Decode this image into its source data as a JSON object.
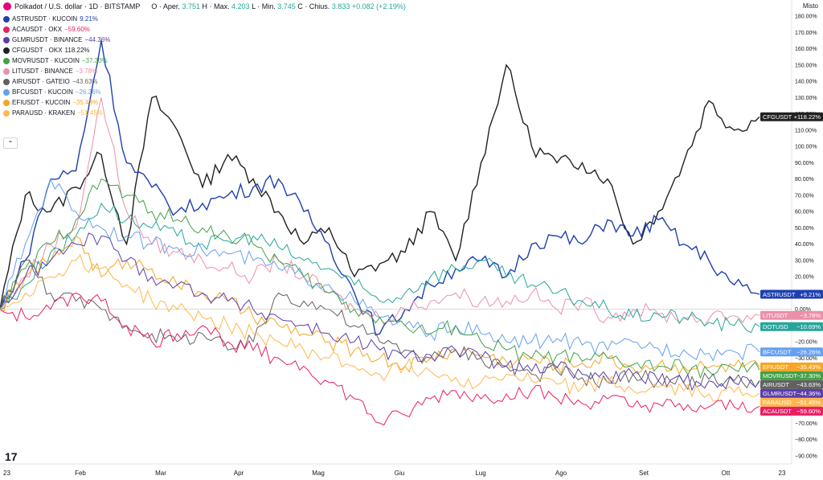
{
  "header": {
    "title": "Polkadot / U.S. dollar · 1D · BITSTAMP",
    "ohlc": {
      "open_label": "O · Aper.",
      "open": "3.751",
      "high_label": "H · Max.",
      "high": "4.203",
      "low_label": "L · Min.",
      "low": "3.745",
      "close_label": "C · Chius.",
      "close": "3.833",
      "change": "+0.082 (+2.19%)"
    }
  },
  "scale_mode": "Misto",
  "legend": [
    {
      "label": "ASTRUSDT · KUCOIN",
      "value": "9.21%",
      "color": "#1e40af"
    },
    {
      "label": "ACAUSDT · OKX",
      "value": "−59.60%",
      "color": "#e91e63"
    },
    {
      "label": "GLMRUSDT · BINANCE",
      "value": "−44.36%",
      "color": "#5b3ea8"
    },
    {
      "label": "CFGUSDT · OKX",
      "value": "118.22%",
      "color": "#212121"
    },
    {
      "label": "MOVRUSDT · KUCOIN",
      "value": "−37.30%",
      "color": "#43a047"
    },
    {
      "label": "LITUSDT · BINANCE",
      "value": "−3.78%",
      "color": "#ec8fa8"
    },
    {
      "label": "AIRUSDT · GATEIO",
      "value": "−43.63%",
      "color": "#616161"
    },
    {
      "label": "BFCUSDT · KUCOIN",
      "value": "−26.26%",
      "color": "#64a0f0"
    },
    {
      "label": "EFIUSDT · KUCOIN",
      "value": "−35.43%",
      "color": "#f5a623"
    },
    {
      "label": "PARAUSD · KRAKEN",
      "value": "−51.45%",
      "color": "#ffb74d"
    }
  ],
  "collapse_glyph": "⌃",
  "logo_text": "17",
  "chart_data": {
    "type": "line",
    "title": "Polkadot / U.S. dollar · 1D · BITSTAMP",
    "xlabel": "",
    "ylabel": "",
    "x_ticks": [
      "23",
      "Feb",
      "Mar",
      "Apr",
      "Mag",
      "Giu",
      "Lug",
      "Ago",
      "Set",
      "Ott",
      "23"
    ],
    "y_ticks": [
      "180.00%",
      "170.00%",
      "160.00%",
      "150.00%",
      "140.00%",
      "130.00%",
      "120.00%",
      "110.00%",
      "100.00%",
      "90.00%",
      "80.00%",
      "70.00%",
      "60.00%",
      "50.00%",
      "40.00%",
      "30.00%",
      "20.00%",
      "10.00%",
      "0.00%",
      "−10.00%",
      "−20.00%",
      "−30.00%",
      "−40.00%",
      "−50.00%",
      "−60.00%",
      "−70.00%",
      "−80.00%",
      "−90.00%"
    ],
    "y_values": [
      180,
      170,
      160,
      150,
      140,
      130,
      120,
      110,
      100,
      90,
      80,
      70,
      60,
      50,
      40,
      30,
      20,
      10,
      0,
      -10,
      -20,
      -30,
      -40,
      -50,
      -60,
      -70,
      -80,
      -90
    ],
    "ylim": [
      -95,
      185
    ],
    "grid": false,
    "legend_position": "top-left",
    "months_index": [
      0,
      1,
      2,
      3,
      4,
      5,
      6,
      7,
      8,
      9
    ],
    "series": [
      {
        "name": "CFGUSDT",
        "tag": "CFGUSDT",
        "last": "+118.22%",
        "color": "#212121",
        "values": [
          0,
          70,
          60,
          75,
          95,
          40,
          130,
          110,
          75,
          95,
          80,
          60,
          40,
          50,
          20,
          28,
          35,
          60,
          30,
          90,
          150,
          100,
          90,
          90,
          80,
          40,
          60,
          90,
          128,
          110,
          118.22
        ]
      },
      {
        "name": "ASTRUSDT",
        "tag": "ASTRUSDT",
        "last": "+9.21%",
        "color": "#1e40af",
        "values": [
          0,
          30,
          80,
          85,
          165,
          90,
          75,
          60,
          65,
          70,
          75,
          80,
          60,
          40,
          10,
          -15,
          0,
          15,
          25,
          30,
          20,
          40,
          45,
          40,
          55,
          45,
          55,
          40,
          30,
          15,
          9.21
        ]
      },
      {
        "name": "LITUSDT",
        "tag": "LITUSDT",
        "last": "−3.78%",
        "color": "#ec8fa8",
        "values": [
          0,
          20,
          40,
          50,
          130,
          60,
          40,
          35,
          30,
          25,
          20,
          30,
          20,
          10,
          0,
          -5,
          0,
          5,
          10,
          5,
          5,
          10,
          0,
          5,
          -5,
          0,
          -3,
          -5,
          -6,
          -4,
          -3.78
        ]
      },
      {
        "name": "DOTUSD",
        "tag": "DOTUSD",
        "last": "−10.69%",
        "color": "#26a69a",
        "values": [
          0,
          15,
          35,
          45,
          65,
          55,
          50,
          45,
          40,
          42,
          45,
          38,
          30,
          25,
          15,
          5,
          10,
          20,
          25,
          30,
          20,
          15,
          10,
          5,
          0,
          -5,
          -3,
          -5,
          -8,
          -10,
          -10.69
        ]
      },
      {
        "name": "BFCUSDT",
        "tag": "BFCUSDT",
        "last": "−26.26%",
        "color": "#64a0f0",
        "values": [
          0,
          40,
          80,
          60,
          50,
          45,
          40,
          38,
          36,
          34,
          30,
          25,
          20,
          15,
          5,
          -5,
          -10,
          -15,
          -10,
          -15,
          -20,
          -20,
          -18,
          -22,
          -25,
          -20,
          -24,
          -25,
          -27,
          -26,
          -26.26
        ]
      },
      {
        "name": "EFIUSDT",
        "tag": "EFIUSDT",
        "last": "−35.43%",
        "color": "#f5a623",
        "values": [
          0,
          20,
          30,
          45,
          20,
          30,
          25,
          15,
          10,
          5,
          -5,
          -10,
          -15,
          -20,
          -25,
          -30,
          -35,
          -30,
          -25,
          -28,
          -32,
          -30,
          -35,
          -33,
          -30,
          -36,
          -34,
          -35,
          -36,
          -35,
          -35.43
        ]
      },
      {
        "name": "MOVRUSDT",
        "tag": "MOVRUSDT",
        "last": "−37.30%",
        "color": "#43a047",
        "values": [
          0,
          25,
          40,
          55,
          80,
          70,
          60,
          55,
          50,
          45,
          40,
          30,
          20,
          10,
          0,
          -5,
          -10,
          -15,
          -10,
          -20,
          -25,
          -30,
          -28,
          -32,
          -30,
          -34,
          -35,
          -36,
          -38,
          -37,
          -37.3
        ]
      },
      {
        "name": "AIRUSDT",
        "tag": "AIRUSDT",
        "last": "−43.63%",
        "color": "#616161",
        "values": [
          0,
          30,
          10,
          5,
          0,
          -10,
          -15,
          -20,
          -15,
          -25,
          -20,
          10,
          5,
          0,
          -10,
          -20,
          -25,
          -30,
          -25,
          -30,
          -35,
          -40,
          -38,
          -42,
          -45,
          -40,
          -44,
          -45,
          -43,
          -44,
          -43.63
        ]
      },
      {
        "name": "GLMRUSDT",
        "tag": "GLMRUSDT",
        "last": "−44.36%",
        "color": "#5b3ea8",
        "values": [
          0,
          20,
          30,
          40,
          45,
          30,
          20,
          15,
          10,
          5,
          0,
          -5,
          -10,
          -15,
          -20,
          -25,
          -30,
          -28,
          -25,
          -30,
          -35,
          -38,
          -36,
          -40,
          -42,
          -40,
          -44,
          -45,
          -44,
          -45,
          -44.36
        ]
      },
      {
        "name": "PARAUSD",
        "tag": "PARAUSD",
        "last": "−51.45%",
        "color": "#ffb74d",
        "values": [
          0,
          10,
          20,
          30,
          25,
          15,
          5,
          0,
          -5,
          -10,
          -15,
          -20,
          -25,
          -30,
          -35,
          -40,
          -35,
          -38,
          -42,
          -45,
          -40,
          -44,
          -46,
          -48,
          -45,
          -50,
          -48,
          -50,
          -52,
          -51,
          -51.45
        ]
      },
      {
        "name": "ACAUSDT",
        "tag": "ACAUSDT",
        "last": "−59.60%",
        "color": "#e91e63",
        "values": [
          0,
          -5,
          0,
          10,
          5,
          -10,
          -20,
          -15,
          -10,
          -20,
          -25,
          -30,
          -35,
          -45,
          -55,
          -70,
          -65,
          -55,
          -50,
          -55,
          -52,
          -50,
          -55,
          -58,
          -55,
          -60,
          -58,
          -62,
          -60,
          -60,
          -59.6
        ]
      }
    ]
  }
}
